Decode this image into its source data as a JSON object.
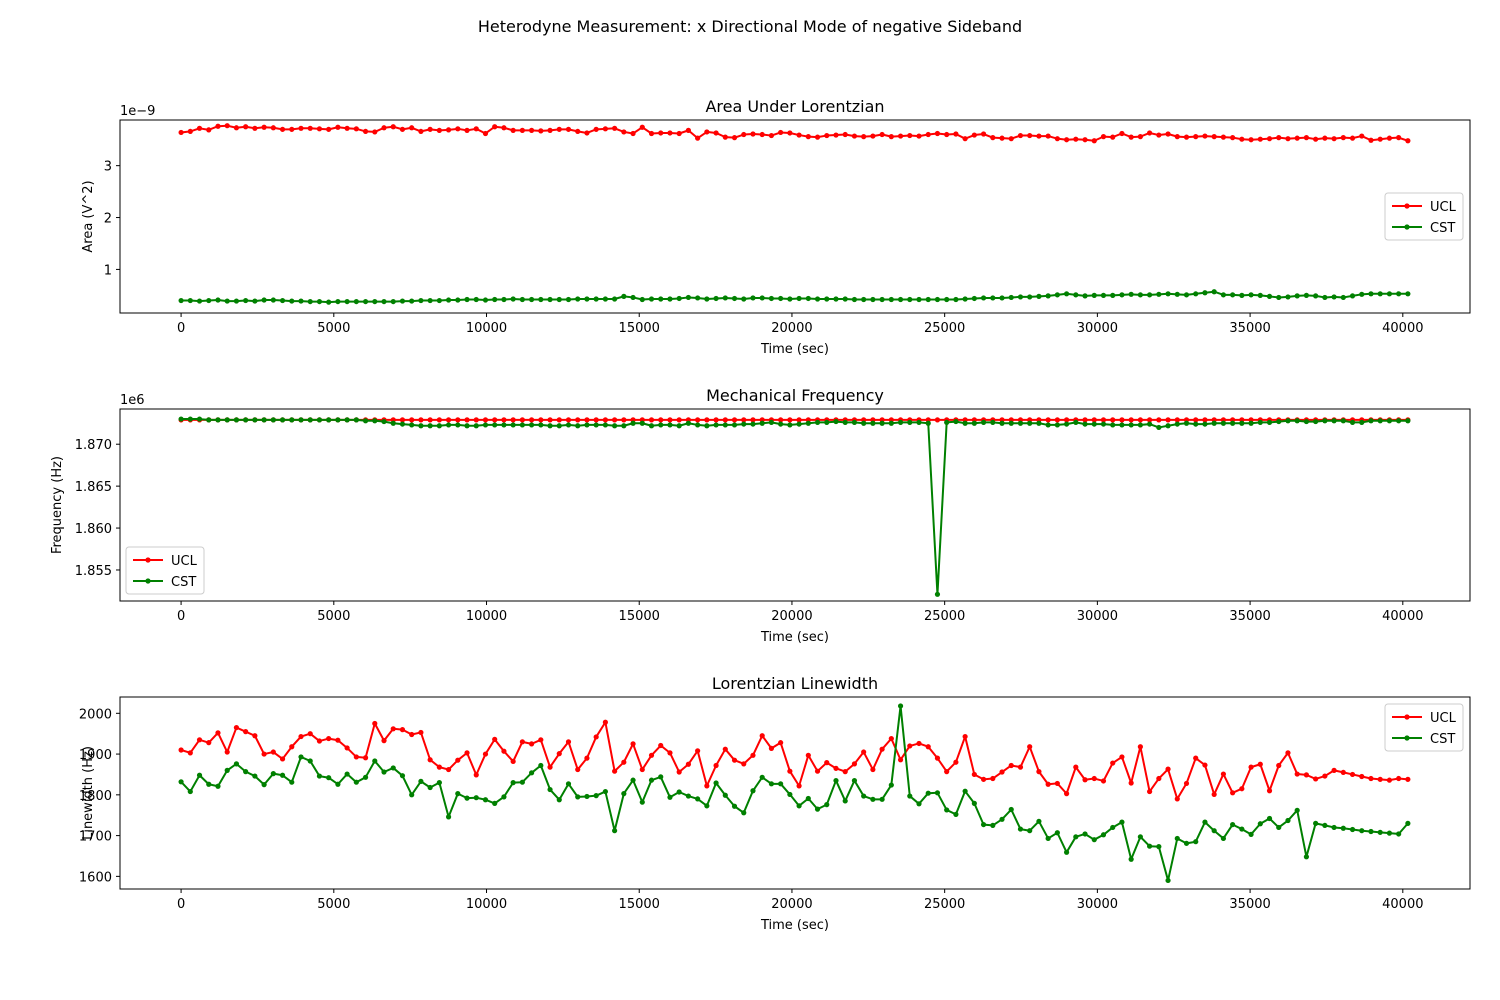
{
  "figure": {
    "suptitle": "Heterodyne Measurement: x Directional Mode of negative Sideband"
  },
  "colors": {
    "UCL": "#ff0000",
    "CST": "#008000"
  },
  "chart_data": [
    {
      "type": "line",
      "title": "Area Under Lorentzian",
      "xlabel": "Time (sec)",
      "ylabel": "Area (V^2)",
      "offset_text": "1e−9",
      "xlim": [
        -2000,
        42200
      ],
      "ylim": [
        0.16,
        3.88
      ],
      "xticks": [
        0,
        5000,
        10000,
        15000,
        20000,
        25000,
        30000,
        35000,
        40000
      ],
      "xtick_labels": [
        "0",
        "5000",
        "10000",
        "15000",
        "20000",
        "25000",
        "30000",
        "35000",
        "40000"
      ],
      "yticks": [
        1,
        2,
        3
      ],
      "ytick_labels": [
        "1",
        "2",
        "3"
      ],
      "legend_position": "center-right",
      "x": {
        "start": 0,
        "step": 302,
        "count": 134
      },
      "series": [
        {
          "name": "UCL",
          "color": "#ff0000",
          "values": [
            3.64,
            3.66,
            3.72,
            3.69,
            3.76,
            3.77,
            3.73,
            3.75,
            3.72,
            3.74,
            3.73,
            3.7,
            3.7,
            3.72,
            3.72,
            3.71,
            3.7,
            3.74,
            3.72,
            3.71,
            3.66,
            3.65,
            3.73,
            3.75,
            3.7,
            3.73,
            3.66,
            3.7,
            3.68,
            3.69,
            3.71,
            3.68,
            3.71,
            3.62,
            3.75,
            3.73,
            3.68,
            3.68,
            3.68,
            3.67,
            3.68,
            3.7,
            3.7,
            3.66,
            3.63,
            3.7,
            3.71,
            3.72,
            3.65,
            3.62,
            3.74,
            3.62,
            3.63,
            3.63,
            3.62,
            3.68,
            3.53,
            3.65,
            3.63,
            3.55,
            3.54,
            3.6,
            3.61,
            3.6,
            3.58,
            3.64,
            3.63,
            3.59,
            3.56,
            3.55,
            3.58,
            3.59,
            3.6,
            3.57,
            3.56,
            3.57,
            3.6,
            3.56,
            3.57,
            3.58,
            3.57,
            3.6,
            3.62,
            3.6,
            3.61,
            3.52,
            3.59,
            3.61,
            3.54,
            3.53,
            3.52,
            3.58,
            3.58,
            3.57,
            3.57,
            3.52,
            3.5,
            3.51,
            3.5,
            3.48,
            3.56,
            3.55,
            3.62,
            3.55,
            3.56,
            3.63,
            3.59,
            3.61,
            3.56,
            3.55,
            3.56,
            3.57,
            3.56,
            3.55,
            3.54,
            3.51,
            3.5,
            3.51,
            3.52,
            3.54,
            3.52,
            3.53,
            3.54,
            3.51,
            3.53,
            3.52,
            3.54,
            3.53,
            3.57,
            3.49,
            3.51,
            3.53,
            3.54,
            3.48
          ]
        },
        {
          "name": "CST",
          "color": "#008000",
          "values": [
            0.4,
            0.4,
            0.39,
            0.4,
            0.41,
            0.39,
            0.39,
            0.4,
            0.39,
            0.41,
            0.41,
            0.4,
            0.39,
            0.39,
            0.38,
            0.38,
            0.37,
            0.38,
            0.38,
            0.38,
            0.38,
            0.38,
            0.38,
            0.38,
            0.39,
            0.39,
            0.4,
            0.4,
            0.4,
            0.41,
            0.41,
            0.42,
            0.42,
            0.41,
            0.42,
            0.42,
            0.43,
            0.42,
            0.42,
            0.42,
            0.42,
            0.42,
            0.42,
            0.43,
            0.43,
            0.43,
            0.43,
            0.43,
            0.48,
            0.46,
            0.42,
            0.43,
            0.43,
            0.43,
            0.44,
            0.46,
            0.45,
            0.43,
            0.44,
            0.45,
            0.44,
            0.43,
            0.45,
            0.45,
            0.44,
            0.44,
            0.43,
            0.44,
            0.44,
            0.43,
            0.43,
            0.43,
            0.43,
            0.42,
            0.42,
            0.42,
            0.42,
            0.42,
            0.42,
            0.42,
            0.42,
            0.42,
            0.42,
            0.42,
            0.42,
            0.43,
            0.44,
            0.45,
            0.45,
            0.45,
            0.46,
            0.47,
            0.47,
            0.48,
            0.49,
            0.51,
            0.53,
            0.51,
            0.49,
            0.5,
            0.5,
            0.5,
            0.51,
            0.52,
            0.51,
            0.51,
            0.52,
            0.53,
            0.52,
            0.51,
            0.53,
            0.55,
            0.57,
            0.51,
            0.51,
            0.5,
            0.51,
            0.5,
            0.48,
            0.46,
            0.47,
            0.49,
            0.5,
            0.49,
            0.46,
            0.47,
            0.46,
            0.49,
            0.52,
            0.53,
            0.53,
            0.53,
            0.53,
            0.53
          ]
        }
      ]
    },
    {
      "type": "line",
      "title": "Mechanical Frequency",
      "xlabel": "Time (sec)",
      "ylabel": "Frequency (Hz)",
      "offset_text": "1e6",
      "xlim": [
        -2000,
        42200
      ],
      "ylim": [
        1.8513,
        1.8742
      ],
      "xticks": [
        0,
        5000,
        10000,
        15000,
        20000,
        25000,
        30000,
        35000,
        40000
      ],
      "xtick_labels": [
        "0",
        "5000",
        "10000",
        "15000",
        "20000",
        "25000",
        "30000",
        "35000",
        "40000"
      ],
      "yticks": [
        1.855,
        1.86,
        1.865,
        1.87
      ],
      "ytick_labels": [
        "1.855",
        "1.860",
        "1.865",
        "1.870"
      ],
      "legend_position": "lower-left",
      "x": {
        "start": 0,
        "step": 302,
        "count": 134
      },
      "series": [
        {
          "name": "UCL",
          "color": "#ff0000",
          "values": [
            1.8729,
            1.8729,
            1.8729,
            1.8729,
            1.8729,
            1.8729,
            1.8729,
            1.8729,
            1.8729,
            1.8729,
            1.8729,
            1.8729,
            1.8729,
            1.8729,
            1.8729,
            1.8729,
            1.8729,
            1.8729,
            1.8729,
            1.8729,
            1.8729,
            1.8729,
            1.8729,
            1.8729,
            1.8729,
            1.8729,
            1.8729,
            1.8729,
            1.8729,
            1.8729,
            1.8729,
            1.8729,
            1.8729,
            1.8729,
            1.8729,
            1.8729,
            1.8729,
            1.8729,
            1.8729,
            1.8729,
            1.8729,
            1.8729,
            1.8729,
            1.8729,
            1.8729,
            1.8729,
            1.8729,
            1.8729,
            1.8729,
            1.8729,
            1.8729,
            1.8729,
            1.8729,
            1.8729,
            1.8729,
            1.8729,
            1.8729,
            1.8729,
            1.8729,
            1.8729,
            1.8729,
            1.8729,
            1.8729,
            1.8729,
            1.8729,
            1.8729,
            1.8729,
            1.8729,
            1.8729,
            1.8729,
            1.8729,
            1.8729,
            1.8729,
            1.8729,
            1.8729,
            1.8729,
            1.8729,
            1.8729,
            1.8729,
            1.8729,
            1.8729,
            1.8729,
            1.8729,
            1.8729,
            1.8729,
            1.8729,
            1.8729,
            1.8729,
            1.8729,
            1.8729,
            1.8729,
            1.8729,
            1.8729,
            1.8729,
            1.8729,
            1.8729,
            1.8729,
            1.8729,
            1.8729,
            1.8729,
            1.8729,
            1.8729,
            1.8729,
            1.8729,
            1.8729,
            1.8729,
            1.8729,
            1.8729,
            1.8729,
            1.8729,
            1.8729,
            1.8729,
            1.8729,
            1.8729,
            1.8729,
            1.8729,
            1.8729,
            1.8729,
            1.8729,
            1.8729,
            1.8729,
            1.8729,
            1.8729,
            1.8729,
            1.8729,
            1.8729,
            1.8729,
            1.8729,
            1.8729,
            1.8729,
            1.8729,
            1.8729,
            1.8729,
            1.8729
          ]
        },
        {
          "name": "CST",
          "color": "#008000",
          "values": [
            1.873,
            1.873,
            1.873,
            1.8729,
            1.8729,
            1.8729,
            1.8729,
            1.8729,
            1.8729,
            1.8729,
            1.8729,
            1.8729,
            1.8729,
            1.8729,
            1.8729,
            1.8729,
            1.8729,
            1.8729,
            1.8729,
            1.8729,
            1.8728,
            1.8728,
            1.8727,
            1.8725,
            1.8724,
            1.8723,
            1.8722,
            1.8722,
            1.8722,
            1.8723,
            1.8723,
            1.8722,
            1.8722,
            1.8723,
            1.8723,
            1.8723,
            1.8723,
            1.8723,
            1.8723,
            1.8723,
            1.8722,
            1.8722,
            1.8723,
            1.8722,
            1.8723,
            1.8723,
            1.8723,
            1.8722,
            1.8722,
            1.8725,
            1.8725,
            1.8722,
            1.8723,
            1.8723,
            1.8722,
            1.8725,
            1.8723,
            1.8722,
            1.8723,
            1.8723,
            1.8723,
            1.8724,
            1.8724,
            1.8725,
            1.8726,
            1.8724,
            1.8723,
            1.8724,
            1.8725,
            1.8726,
            1.8726,
            1.8727,
            1.8726,
            1.8726,
            1.8725,
            1.8725,
            1.8725,
            1.8725,
            1.8726,
            1.8726,
            1.8726,
            1.8725,
            1.8521,
            1.8726,
            1.8727,
            1.8725,
            1.8725,
            1.8726,
            1.8726,
            1.8725,
            1.8725,
            1.8725,
            1.8725,
            1.8725,
            1.8723,
            1.8723,
            1.8724,
            1.8726,
            1.8724,
            1.8724,
            1.8724,
            1.8723,
            1.8723,
            1.8723,
            1.8723,
            1.8724,
            1.872,
            1.8722,
            1.8724,
            1.8725,
            1.8724,
            1.8724,
            1.8725,
            1.8725,
            1.8725,
            1.8725,
            1.8725,
            1.8726,
            1.8726,
            1.8727,
            1.8728,
            1.8728,
            1.8727,
            1.8727,
            1.8728,
            1.8728,
            1.8728,
            1.8726,
            1.8726,
            1.8728,
            1.8728,
            1.8728,
            1.8728,
            1.8728
          ]
        }
      ]
    },
    {
      "type": "line",
      "title": "Lorentzian Linewidth",
      "xlabel": "Time (sec)",
      "ylabel": "Linewidth (Hz)",
      "offset_text": "",
      "xlim": [
        -2000,
        42200
      ],
      "ylim": [
        1569,
        2040
      ],
      "xticks": [
        0,
        5000,
        10000,
        15000,
        20000,
        25000,
        30000,
        35000,
        40000
      ],
      "xtick_labels": [
        "0",
        "5000",
        "10000",
        "15000",
        "20000",
        "25000",
        "30000",
        "35000",
        "40000"
      ],
      "yticks": [
        1600,
        1700,
        1800,
        1900,
        2000
      ],
      "ytick_labels": [
        "1600",
        "1700",
        "1800",
        "1900",
        "2000"
      ],
      "legend_position": "top-right",
      "x": {
        "start": 0,
        "step": 302,
        "count": 134
      },
      "series": [
        {
          "name": "UCL",
          "color": "#ff0000",
          "values": [
            1910,
            1903,
            1935,
            1928,
            1952,
            1905,
            1965,
            1955,
            1945,
            1900,
            1905,
            1888,
            1918,
            1943,
            1950,
            1932,
            1938,
            1934,
            1915,
            1893,
            1891,
            1975,
            1933,
            1962,
            1960,
            1948,
            1953,
            1886,
            1868,
            1862,
            1885,
            1903,
            1849,
            1900,
            1936,
            1907,
            1882,
            1930,
            1925,
            1935,
            1868,
            1901,
            1930,
            1862,
            1890,
            1942,
            1978,
            1858,
            1880,
            1925,
            1862,
            1897,
            1921,
            1903,
            1856,
            1875,
            1908,
            1822,
            1872,
            1912,
            1885,
            1876,
            1897,
            1945,
            1914,
            1928,
            1858,
            1822,
            1897,
            1858,
            1879,
            1865,
            1857,
            1876,
            1905,
            1862,
            1912,
            1938,
            1886,
            1920,
            1926,
            1918,
            1890,
            1857,
            1880,
            1943,
            1850,
            1838,
            1840,
            1856,
            1872,
            1868,
            1918,
            1857,
            1826,
            1828,
            1803,
            1868,
            1837,
            1840,
            1834,
            1878,
            1893,
            1829,
            1918,
            1808,
            1840,
            1863,
            1790,
            1828,
            1890,
            1873,
            1801,
            1851,
            1805,
            1815,
            1868,
            1875,
            1810,
            1872,
            1903,
            1851,
            1849,
            1839,
            1846,
            1860,
            1855,
            1850,
            1845,
            1840,
            1838,
            1836,
            1840,
            1838
          ]
        },
        {
          "name": "CST",
          "color": "#008000",
          "values": [
            1832,
            1808,
            1848,
            1826,
            1821,
            1860,
            1876,
            1857,
            1846,
            1825,
            1852,
            1848,
            1831,
            1893,
            1883,
            1846,
            1842,
            1826,
            1851,
            1831,
            1843,
            1883,
            1856,
            1866,
            1847,
            1800,
            1833,
            1818,
            1830,
            1746,
            1803,
            1792,
            1793,
            1788,
            1779,
            1795,
            1830,
            1831,
            1854,
            1872,
            1813,
            1788,
            1827,
            1795,
            1796,
            1798,
            1808,
            1712,
            1803,
            1836,
            1782,
            1836,
            1844,
            1794,
            1807,
            1797,
            1790,
            1773,
            1829,
            1799,
            1772,
            1756,
            1810,
            1843,
            1827,
            1827,
            1801,
            1773,
            1791,
            1765,
            1776,
            1835,
            1785,
            1835,
            1797,
            1789,
            1789,
            1824,
            2018,
            1797,
            1778,
            1804,
            1805,
            1763,
            1752,
            1809,
            1779,
            1727,
            1725,
            1740,
            1764,
            1716,
            1712,
            1735,
            1693,
            1707,
            1659,
            1697,
            1704,
            1690,
            1702,
            1720,
            1733,
            1642,
            1697,
            1674,
            1673,
            1590,
            1693,
            1681,
            1685,
            1733,
            1712,
            1693,
            1727,
            1716,
            1703,
            1729,
            1742,
            1720,
            1737,
            1762,
            1648,
            1730,
            1725,
            1720,
            1718,
            1715,
            1712,
            1710,
            1708,
            1706,
            1704,
            1730
          ]
        }
      ]
    }
  ]
}
